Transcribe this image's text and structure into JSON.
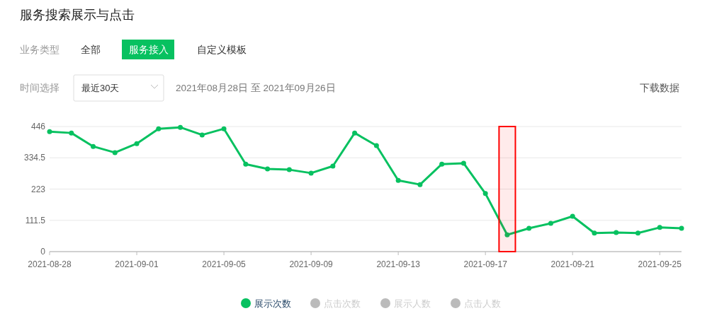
{
  "chart_data": {
    "type": "line",
    "title": "服务搜索展示与点击",
    "annotations": [
      "业务类型",
      "全部",
      "服务接入",
      "自定义模板",
      "时间选择",
      "最近30天",
      "2021年08月28日 至 2021年09月26日",
      "下载数据"
    ],
    "x": [
      "2021-08-28",
      "2021-08-29",
      "2021-08-30",
      "2021-08-31",
      "2021-09-01",
      "2021-09-02",
      "2021-09-03",
      "2021-09-04",
      "2021-09-05",
      "2021-09-06",
      "2021-09-07",
      "2021-09-08",
      "2021-09-09",
      "2021-09-10",
      "2021-09-11",
      "2021-09-12",
      "2021-09-13",
      "2021-09-14",
      "2021-09-15",
      "2021-09-16",
      "2021-09-17",
      "2021-09-18",
      "2021-09-19",
      "2021-09-20",
      "2021-09-21",
      "2021-09-22",
      "2021-09-23",
      "2021-09-24",
      "2021-09-25",
      "2021-09-26"
    ],
    "series": [
      {
        "name": "展示次数",
        "color": "#07c160",
        "values": [
          428,
          423,
          375,
          353,
          385,
          438,
          443,
          416,
          438,
          312,
          295,
          292,
          280,
          305,
          423,
          378,
          254,
          239,
          312,
          315,
          207,
          60,
          83,
          101,
          126,
          66,
          68,
          66,
          86,
          83
        ]
      },
      {
        "name": "点击次数",
        "color": "#bbbbbb",
        "values": [
          null,
          null,
          null,
          null,
          null,
          null,
          null,
          null,
          null,
          null,
          null,
          null,
          null,
          null,
          null,
          null,
          null,
          null,
          null,
          null,
          null,
          null,
          null,
          null,
          null,
          null,
          null,
          null,
          null,
          null
        ]
      },
      {
        "name": "展示人数",
        "color": "#bbbbbb",
        "values": [
          null,
          null,
          null,
          null,
          null,
          null,
          null,
          null,
          null,
          null,
          null,
          null,
          null,
          null,
          null,
          null,
          null,
          null,
          null,
          null,
          null,
          null,
          null,
          null,
          null,
          null,
          null,
          null,
          null,
          null
        ]
      },
      {
        "name": "点击人数",
        "color": "#bbbbbb",
        "values": [
          null,
          null,
          null,
          null,
          null,
          null,
          null,
          null,
          null,
          null,
          null,
          null,
          null,
          null,
          null,
          null,
          null,
          null,
          null,
          null,
          null,
          null,
          null,
          null,
          null,
          null,
          null,
          null,
          null,
          null
        ]
      }
    ],
    "xlim": [
      "2021-08-28",
      "2021-09-26"
    ],
    "xticks": [
      "2021-08-28",
      "2021-09-01",
      "2021-09-05",
      "2021-09-09",
      "2021-09-13",
      "2021-09-17",
      "2021-09-21",
      "2021-09-25"
    ],
    "ylim": [
      0,
      446
    ],
    "yticks": [
      0,
      111.5,
      223,
      334.5,
      446
    ],
    "bands": [
      {
        "axis": "x",
        "from": "2021-09-17T15:00",
        "to": "2021-09-18T09:00",
        "color": "#ff0000"
      }
    ],
    "grid": "y",
    "legend": "bottom",
    "marker": "circle",
    "line_style": "solid"
  }
}
